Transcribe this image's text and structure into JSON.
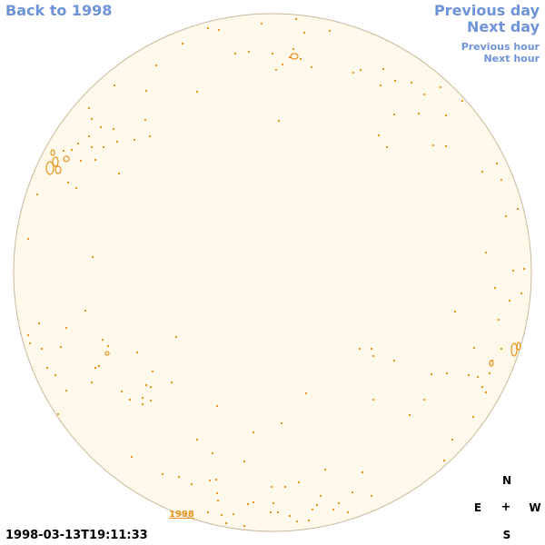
{
  "nav": {
    "back_label": "Back to 1998",
    "previous_day": "Previous day",
    "next_day": "Next day",
    "previous_hour": "Previous hour",
    "next_hour": "Next hour"
  },
  "disk": {
    "year_link": "1998",
    "timestamp": "1998-03-13T19:11:33",
    "colors": {
      "disk_fill": "#fff9ec",
      "disk_stroke": "#c8b89a",
      "feature": "#e8921c"
    }
  },
  "compass": {
    "north": "N",
    "east": "E",
    "center": "+",
    "west": "W",
    "south": "S"
  }
}
